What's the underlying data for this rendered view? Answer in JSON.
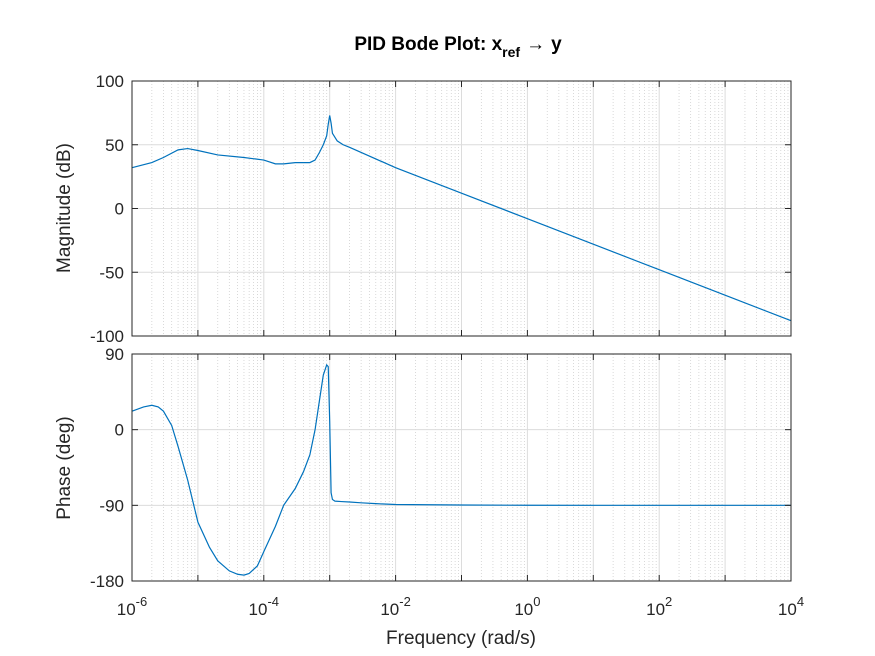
{
  "chart_data": {
    "type": "line",
    "title": {
      "main": "PID Bode Plot: x",
      "sub": "ref",
      "arrow": "→",
      "end": "y"
    },
    "xlabel": "Frequency  (rad/s)",
    "xscale": "log",
    "xlim": [
      1e-06,
      10000.0
    ],
    "xticks": [
      {
        "base": "10",
        "exp": "-6",
        "value": 1e-06
      },
      {
        "base": "10",
        "exp": "-4",
        "value": 0.0001
      },
      {
        "base": "10",
        "exp": "-2",
        "value": 0.01
      },
      {
        "base": "10",
        "exp": "0",
        "value": 1
      },
      {
        "base": "10",
        "exp": "2",
        "value": 100
      },
      {
        "base": "10",
        "exp": "4",
        "value": 10000
      }
    ],
    "grid": true,
    "color": "#0072BD",
    "panels": [
      {
        "ylabel": "Magnitude (dB)",
        "ylim": [
          -100,
          100
        ],
        "yticks": [
          {
            "label": "100",
            "value": 100
          },
          {
            "label": "50",
            "value": 50
          },
          {
            "label": "0",
            "value": 0
          },
          {
            "label": "-50",
            "value": -50
          },
          {
            "label": "-100",
            "value": -100
          }
        ],
        "series": [
          {
            "x": [
              1e-06,
              2e-06,
              3e-06,
              5e-06,
              7e-06,
              1e-05,
              2e-05,
              5e-05,
              0.0001,
              0.00015,
              0.0002,
              0.0003,
              0.0005,
              0.0006,
              0.0007,
              0.0008,
              0.0009,
              0.00095,
              0.001,
              0.00105,
              0.0011,
              0.0013,
              0.0016,
              0.002,
              0.003,
              0.01,
              0.1,
              1,
              10,
              100,
              1000,
              10000
            ],
            "y": [
              32,
              36,
              40,
              46,
              47,
              45.5,
              42,
              40,
              38,
              35,
              35,
              36,
              36,
              38,
              44,
              50,
              57,
              66,
              73,
              67,
              59,
              53,
              50,
              48,
              44,
              32,
              12,
              -8,
              -28,
              -48,
              -68,
              -88
            ]
          }
        ]
      },
      {
        "ylabel": "Phase (deg)",
        "ylim": [
          -180,
          90
        ],
        "yticks": [
          {
            "label": "90",
            "value": 90
          },
          {
            "label": "0",
            "value": 0
          },
          {
            "label": "-90",
            "value": -90
          },
          {
            "label": "-180",
            "value": -180
          }
        ],
        "series": [
          {
            "x": [
              1e-06,
              1.5e-06,
              2e-06,
              2.5e-06,
              3e-06,
              4e-06,
              5e-06,
              7e-06,
              1e-05,
              1.5e-05,
              2e-05,
              3e-05,
              4e-05,
              5e-05,
              6e-05,
              8e-05,
              0.0001,
              0.00015,
              0.0002,
              0.0003,
              0.0004,
              0.0005,
              0.0006,
              0.0007,
              0.0008,
              0.0009,
              0.00095,
              0.001,
              0.00105,
              0.0011,
              0.0012,
              0.0015,
              0.002,
              0.003,
              0.005,
              0.01,
              0.1,
              1,
              10,
              100,
              1000,
              10000
            ],
            "y": [
              22,
              27,
              29,
              27,
              22,
              5,
              -20,
              -60,
              -110,
              -140,
              -156,
              -168,
              -172,
              -173,
              -171,
              -162,
              -145,
              -115,
              -90,
              -70,
              -50,
              -30,
              0,
              35,
              65,
              77,
              75,
              10,
              -75,
              -83,
              -85,
              -85.5,
              -86,
              -87,
              -88,
              -89,
              -89.6,
              -89.9,
              -90,
              -90,
              -90,
              -90
            ]
          }
        ]
      }
    ]
  }
}
